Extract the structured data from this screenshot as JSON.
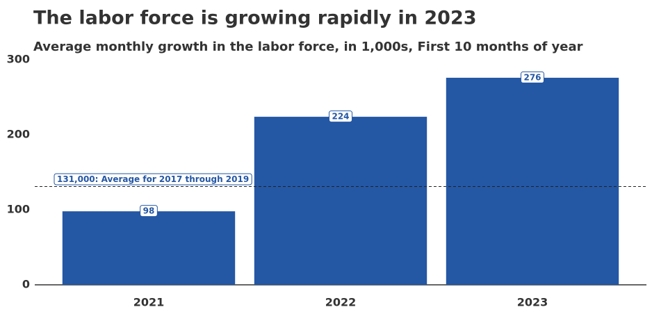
{
  "chart_data": {
    "type": "bar",
    "title": "The labor force is growing rapidly in 2023",
    "subtitle": "Average monthly growth in the labor force, in 1,000s, First 10 months of year",
    "categories": [
      "2021",
      "2022",
      "2023"
    ],
    "values": [
      98,
      224,
      276
    ],
    "color": "#2457a4",
    "ylim": [
      0,
      300
    ],
    "yticks": [
      0,
      100,
      200,
      300
    ],
    "grid": false,
    "reference_line": {
      "value": 131,
      "label": "131,000: Average for 2017 through 2019"
    }
  }
}
